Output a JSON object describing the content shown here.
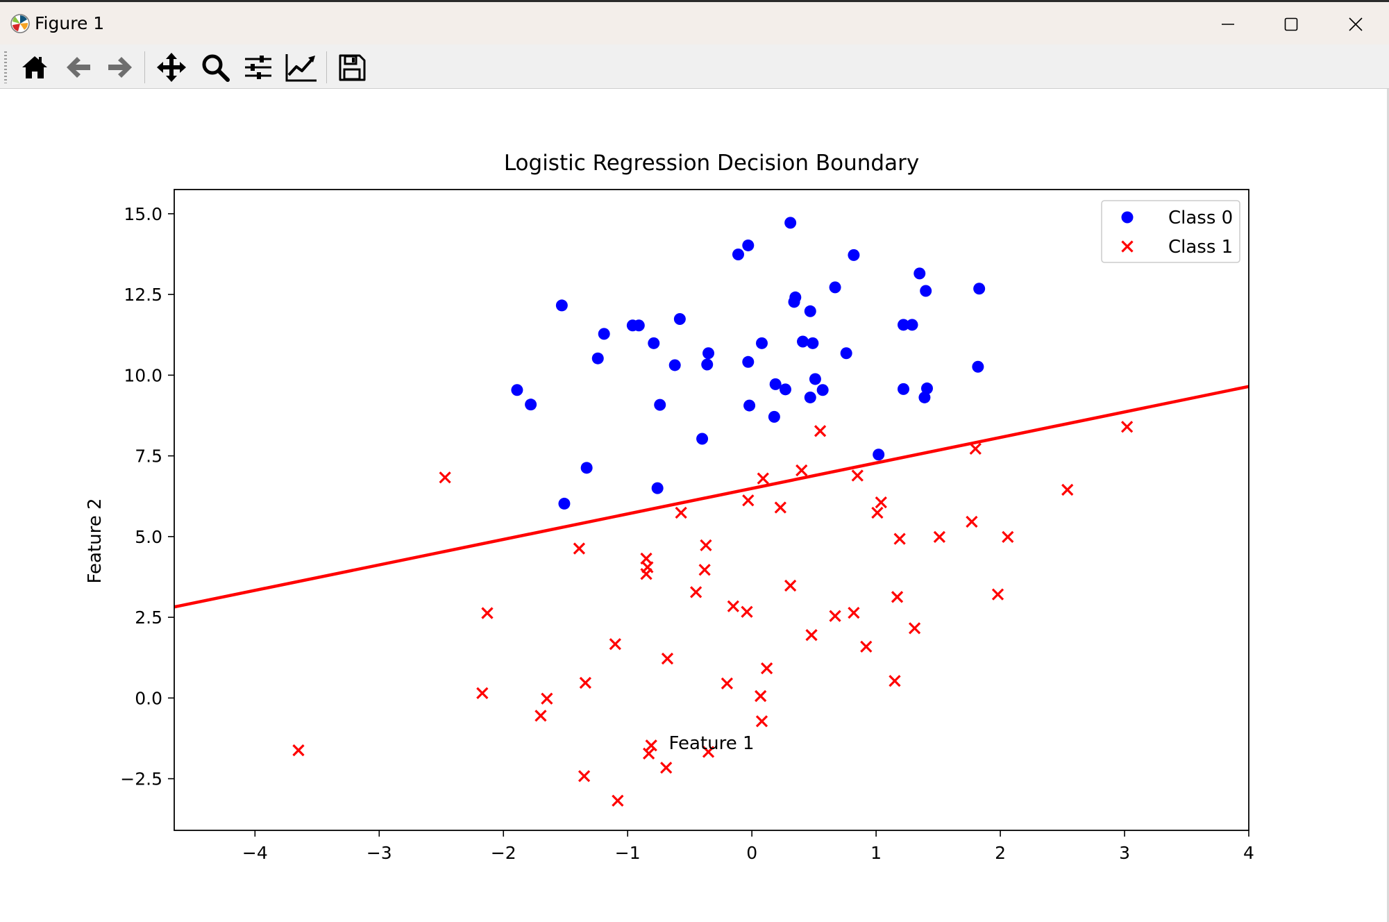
{
  "window": {
    "title": "Figure 1",
    "controls": [
      "minimize-icon",
      "maximize-icon",
      "close-icon"
    ]
  },
  "toolbar": {
    "tools": [
      {
        "name": "home-icon",
        "tooltip": "Home"
      },
      {
        "name": "back-arrow-icon",
        "tooltip": "Back"
      },
      {
        "name": "forward-arrow-icon",
        "tooltip": "Forward"
      },
      {
        "name": "pan-move-icon",
        "tooltip": "Pan"
      },
      {
        "name": "zoom-magnifier-icon",
        "tooltip": "Zoom"
      },
      {
        "name": "configure-subplots-icon",
        "tooltip": "Configure subplots"
      },
      {
        "name": "edit-axis-icon",
        "tooltip": "Edit axis"
      },
      {
        "name": "save-floppy-icon",
        "tooltip": "Save"
      }
    ]
  },
  "chart_data": {
    "type": "scatter",
    "title": "Logistic Regression Decision Boundary",
    "xlabel": "Feature 1",
    "ylabel": "Feature 2",
    "xlim": [
      -4.65,
      4.0
    ],
    "ylim": [
      -4.1,
      15.75
    ],
    "xticks": [
      -4,
      -3,
      -2,
      -1,
      0,
      1,
      2,
      3,
      4
    ],
    "xtick_labels": [
      "−4",
      "−3",
      "−2",
      "−1",
      "0",
      "1",
      "2",
      "3",
      "4"
    ],
    "yticks": [
      -2.5,
      0.0,
      2.5,
      5.0,
      7.5,
      10.0,
      12.5,
      15.0
    ],
    "ytick_labels": [
      "−2.5",
      "0.0",
      "2.5",
      "5.0",
      "7.5",
      "10.0",
      "12.5",
      "15.0"
    ],
    "grid": false,
    "legend_position": "top-right",
    "series": [
      {
        "name": "Class 0",
        "marker": "circle",
        "color": "#0000ff",
        "points": [
          [
            0.31,
            14.72
          ],
          [
            -0.03,
            14.02
          ],
          [
            -0.11,
            13.74
          ],
          [
            0.82,
            13.72
          ],
          [
            1.35,
            13.15
          ],
          [
            0.67,
            12.72
          ],
          [
            1.83,
            12.68
          ],
          [
            1.4,
            12.61
          ],
          [
            0.35,
            12.41
          ],
          [
            0.34,
            12.27
          ],
          [
            0.47,
            11.98
          ],
          [
            -1.53,
            12.16
          ],
          [
            -0.58,
            11.74
          ],
          [
            -0.96,
            11.54
          ],
          [
            -0.91,
            11.54
          ],
          [
            1.22,
            11.56
          ],
          [
            1.29,
            11.56
          ],
          [
            -1.19,
            11.28
          ],
          [
            0.41,
            11.04
          ],
          [
            0.49,
            10.99
          ],
          [
            -0.79,
            10.99
          ],
          [
            0.08,
            10.99
          ],
          [
            -0.35,
            10.68
          ],
          [
            0.76,
            10.68
          ],
          [
            -1.24,
            10.52
          ],
          [
            -0.62,
            10.31
          ],
          [
            -0.36,
            10.33
          ],
          [
            -0.03,
            10.41
          ],
          [
            1.82,
            10.26
          ],
          [
            0.51,
            9.88
          ],
          [
            0.19,
            9.72
          ],
          [
            0.27,
            9.56
          ],
          [
            0.57,
            9.54
          ],
          [
            1.41,
            9.59
          ],
          [
            1.22,
            9.57
          ],
          [
            -1.89,
            9.54
          ],
          [
            0.47,
            9.31
          ],
          [
            1.39,
            9.31
          ],
          [
            -1.78,
            9.09
          ],
          [
            -0.74,
            9.08
          ],
          [
            -0.02,
            9.06
          ],
          [
            0.18,
            8.71
          ],
          [
            -0.4,
            8.03
          ],
          [
            1.02,
            7.54
          ],
          [
            -1.33,
            7.13
          ],
          [
            -0.76,
            6.5
          ],
          [
            -1.51,
            6.02
          ]
        ]
      },
      {
        "name": "Class 1",
        "marker": "x",
        "color": "#ff0000",
        "points": [
          [
            3.02,
            8.4
          ],
          [
            0.55,
            8.27
          ],
          [
            1.8,
            7.72
          ],
          [
            0.4,
            7.05
          ],
          [
            0.85,
            6.89
          ],
          [
            0.09,
            6.8
          ],
          [
            -2.47,
            6.83
          ],
          [
            2.54,
            6.45
          ],
          [
            -0.03,
            6.12
          ],
          [
            1.04,
            6.06
          ],
          [
            0.23,
            5.9
          ],
          [
            1.01,
            5.74
          ],
          [
            -0.57,
            5.74
          ],
          [
            1.77,
            5.46
          ],
          [
            1.51,
            4.99
          ],
          [
            2.06,
            4.99
          ],
          [
            1.19,
            4.93
          ],
          [
            -0.37,
            4.73
          ],
          [
            -1.39,
            4.63
          ],
          [
            -0.85,
            4.32
          ],
          [
            -0.84,
            4.05
          ],
          [
            -0.38,
            3.97
          ],
          [
            -0.85,
            3.84
          ],
          [
            0.31,
            3.48
          ],
          [
            -0.45,
            3.28
          ],
          [
            1.17,
            3.13
          ],
          [
            1.98,
            3.21
          ],
          [
            -2.13,
            2.63
          ],
          [
            -0.15,
            2.84
          ],
          [
            -0.04,
            2.67
          ],
          [
            0.82,
            2.64
          ],
          [
            0.67,
            2.54
          ],
          [
            1.31,
            2.16
          ],
          [
            0.48,
            1.95
          ],
          [
            -1.1,
            1.67
          ],
          [
            0.92,
            1.59
          ],
          [
            -0.68,
            1.22
          ],
          [
            0.12,
            0.92
          ],
          [
            -0.2,
            0.45
          ],
          [
            -1.34,
            0.47
          ],
          [
            1.15,
            0.53
          ],
          [
            -2.17,
            0.15
          ],
          [
            0.07,
            0.06
          ],
          [
            -1.65,
            -0.02
          ],
          [
            -1.7,
            -0.55
          ],
          [
            0.08,
            -0.72
          ],
          [
            -0.81,
            -1.47
          ],
          [
            -0.83,
            -1.72
          ],
          [
            -0.35,
            -1.67
          ],
          [
            -3.65,
            -1.62
          ],
          [
            -0.69,
            -2.16
          ],
          [
            -1.35,
            -2.42
          ],
          [
            -1.08,
            -3.18
          ]
        ]
      }
    ],
    "decision_boundary": {
      "color": "#ff0000",
      "points": [
        [
          -4.65,
          2.82
        ],
        [
          4.0,
          9.65
        ]
      ]
    }
  }
}
